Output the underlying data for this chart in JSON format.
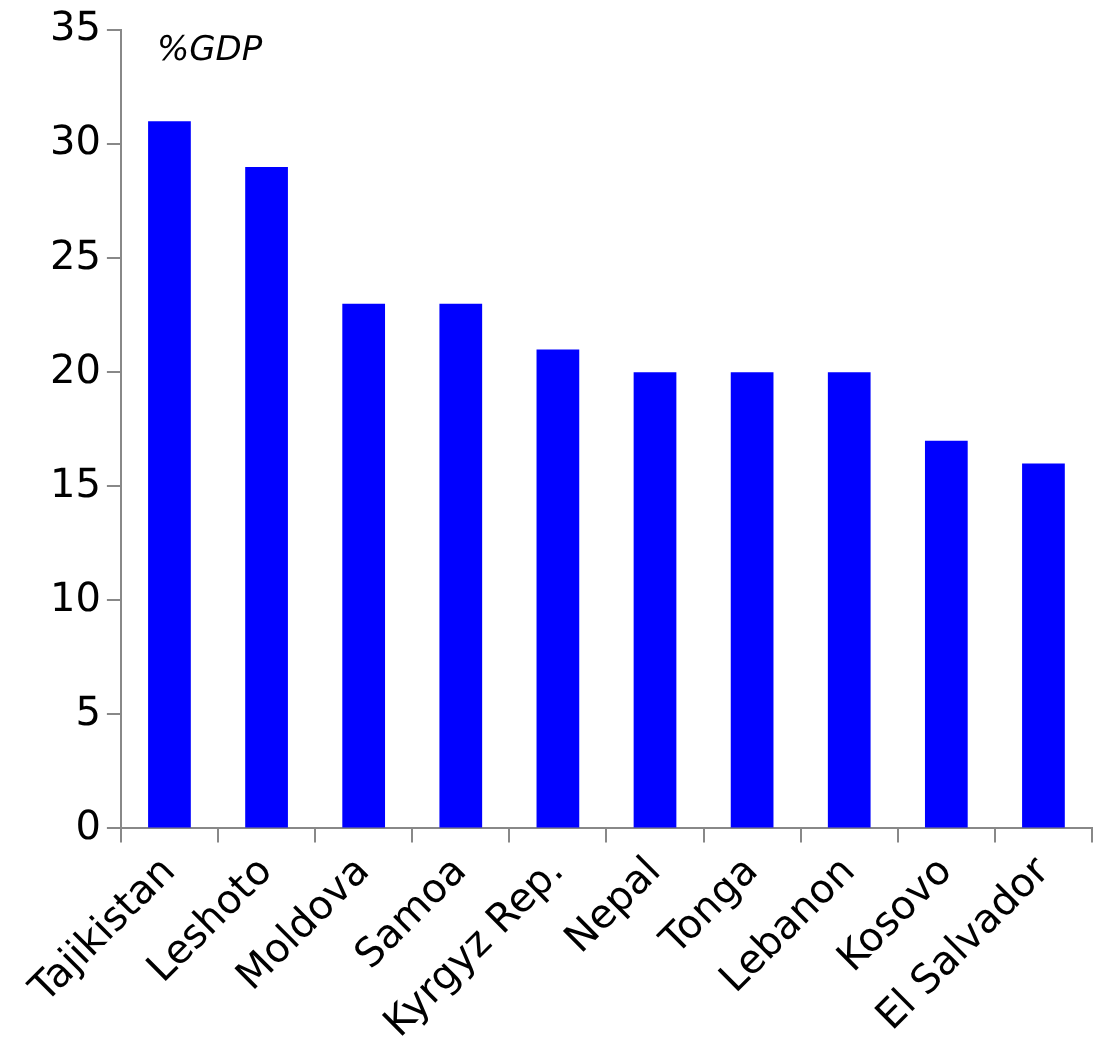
{
  "chart_data": {
    "type": "bar",
    "ylabel": "%GDP",
    "categories": [
      "Tajikistan",
      "Leshoto",
      "Moldova",
      "Samoa",
      "Kyrgyz Rep.",
      "Nepal",
      "Tonga",
      "Lebanon",
      "Kosovo",
      "El Salvador"
    ],
    "values": [
      31,
      29,
      23,
      23,
      21,
      20,
      20,
      20,
      17,
      16
    ],
    "color": "#0000ff",
    "ylim": [
      0,
      35
    ],
    "yticks": [
      0,
      5,
      10,
      15,
      20,
      25,
      30,
      35
    ],
    "grid": false
  }
}
